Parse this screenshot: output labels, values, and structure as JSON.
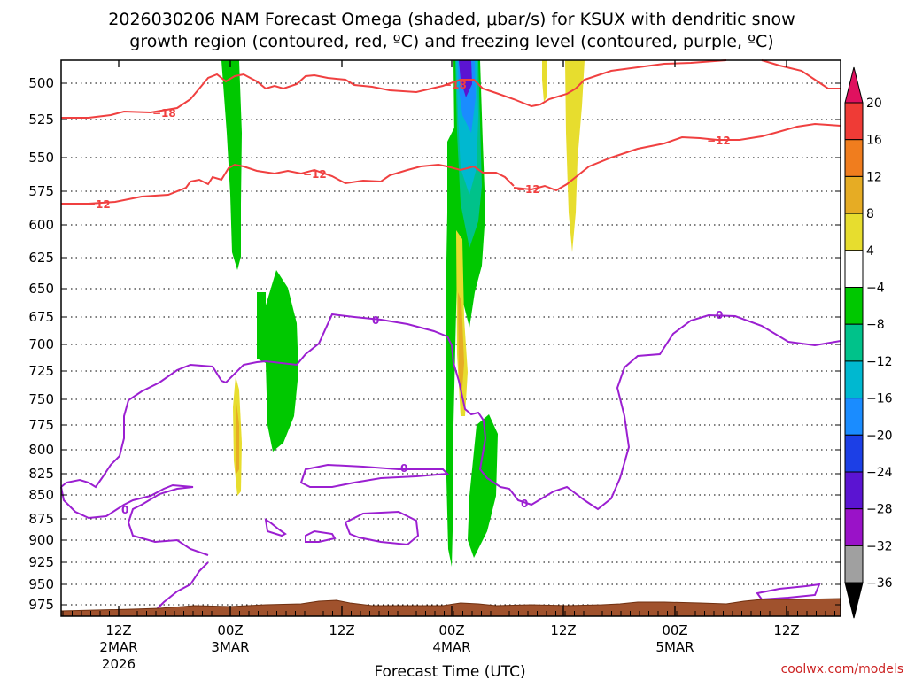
{
  "chart_data": {
    "type": "heatmap",
    "title_line1": "2026030206 NAM Forecast Omega (shaded, μbar/s) for KSUX with dendritic snow",
    "title_line2": "growth region (contoured, red, ºC) and freezing level (contoured, purple, ºC)",
    "xlabel": "Forecast Time (UTC)",
    "credit": "coolwx.com/models",
    "y_ticks": [
      "500",
      "525",
      "550",
      "575",
      "600",
      "625",
      "650",
      "675",
      "700",
      "725",
      "750",
      "775",
      "800",
      "825",
      "850",
      "875",
      "900",
      "925",
      "950",
      "975"
    ],
    "x_ticks": [
      {
        "line1": "12Z",
        "line2": "2MAR",
        "line3": "2026"
      },
      {
        "line1": "00Z",
        "line2": "3MAR",
        "line3": ""
      },
      {
        "line1": "12Z",
        "line2": "",
        "line3": ""
      },
      {
        "line1": "00Z",
        "line2": "4MAR",
        "line3": ""
      },
      {
        "line1": "12Z",
        "line2": "",
        "line3": ""
      },
      {
        "line1": "00Z",
        "line2": "5MAR",
        "line3": ""
      },
      {
        "line1": "12Z",
        "line2": "",
        "line3": ""
      }
    ],
    "colorbar_labels": [
      "20",
      "16",
      "12",
      "8",
      "4",
      "−4",
      "−8",
      "−12",
      "−16",
      "−20",
      "−24",
      "−28",
      "−32",
      "−36"
    ],
    "colorbar_colors": [
      "#e0115f",
      "#ef3b36",
      "#f07d1e",
      "#e6ac24",
      "#e7dd2e",
      "#ffffff",
      "#00c800",
      "#00c28a",
      "#00b8d0",
      "#1a8cff",
      "#1c3fe6",
      "#5b14d2",
      "#9a12c8",
      "#a0a0a0",
      "#000000"
    ],
    "contour_labels": {
      "red_minus18": "−18",
      "red_minus12": "−12",
      "purple_zero": "0"
    },
    "colors": {
      "red_contour": "#f04040",
      "purple_contour": "#9b1fd1",
      "terrain": "#a0522d"
    }
  }
}
